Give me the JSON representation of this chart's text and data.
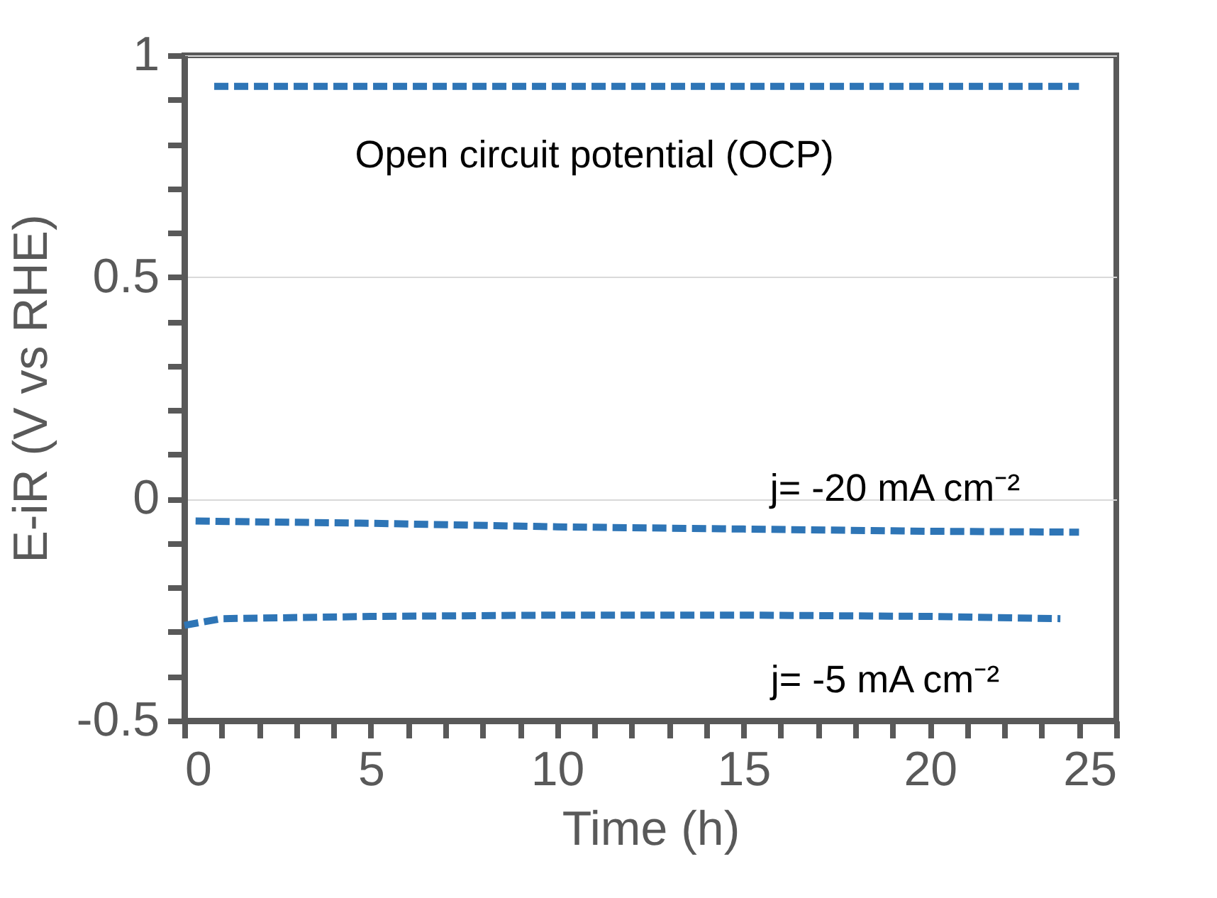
{
  "chart_data": {
    "type": "line",
    "xlabel": "Time (h)",
    "ylabel": "E-iR (V vs RHE)",
    "xlim": [
      0,
      25
    ],
    "xticks": [
      0,
      {
        "value": 1,
        "label": null
      },
      {
        "value": 2,
        "label": null
      },
      {
        "value": 3,
        "label": null
      },
      {
        "value": 4,
        "label": null
      },
      5,
      {
        "value": 6,
        "label": null
      },
      {
        "value": 7,
        "label": null
      },
      {
        "value": 8,
        "label": null
      },
      {
        "value": 9,
        "label": null
      },
      10,
      {
        "value": 11,
        "label": null
      },
      {
        "value": 12,
        "label": null
      },
      {
        "value": 13,
        "label": null
      },
      {
        "value": 14,
        "label": null
      },
      15,
      {
        "value": 16,
        "label": null
      },
      {
        "value": 17,
        "label": null
      },
      {
        "value": 18,
        "label": null
      },
      {
        "value": 19,
        "label": null
      },
      20,
      {
        "value": 21,
        "label": null
      },
      {
        "value": 22,
        "label": null
      },
      {
        "value": 23,
        "label": null
      },
      {
        "value": 24,
        "label": null
      },
      25
    ],
    "ylim": [
      -0.5,
      1
    ],
    "yticks": [
      -0.5,
      {
        "value": -0.4,
        "label": null
      },
      {
        "value": -0.3,
        "label": null
      },
      {
        "value": -0.2,
        "label": null
      },
      {
        "value": -0.1,
        "label": null
      },
      0,
      {
        "value": 0.1,
        "label": null
      },
      {
        "value": 0.2,
        "label": null
      },
      {
        "value": 0.3,
        "label": null
      },
      {
        "value": 0.4,
        "label": null
      },
      0.5,
      {
        "value": 0.6,
        "label": null
      },
      {
        "value": 0.7,
        "label": null
      },
      {
        "value": 0.8,
        "label": null
      },
      {
        "value": 0.9,
        "label": null
      },
      1
    ],
    "grid": "y",
    "marker": "none",
    "line_style": "dashed",
    "series": [
      {
        "color": "#2e75b6",
        "x": [
          0.8,
          5,
          10,
          15,
          20,
          24
        ],
        "values": [
          0.93,
          0.93,
          0.93,
          0.93,
          0.93,
          0.93
        ]
      },
      {
        "color": "#2e75b6",
        "x": [
          0.3,
          5,
          10,
          15,
          20,
          24
        ],
        "values": [
          -0.05,
          -0.055,
          -0.063,
          -0.068,
          -0.073,
          -0.075
        ]
      },
      {
        "color": "#2e75b6",
        "x": [
          0,
          1,
          5,
          10,
          15,
          20,
          23.5
        ],
        "values": [
          -0.285,
          -0.27,
          -0.265,
          -0.262,
          -0.262,
          -0.265,
          -0.27
        ]
      }
    ],
    "annotations": [
      "Open circuit potential (OCP)",
      "j= -20 mA cm⁻²",
      "j= -5 mA cm⁻²"
    ]
  }
}
